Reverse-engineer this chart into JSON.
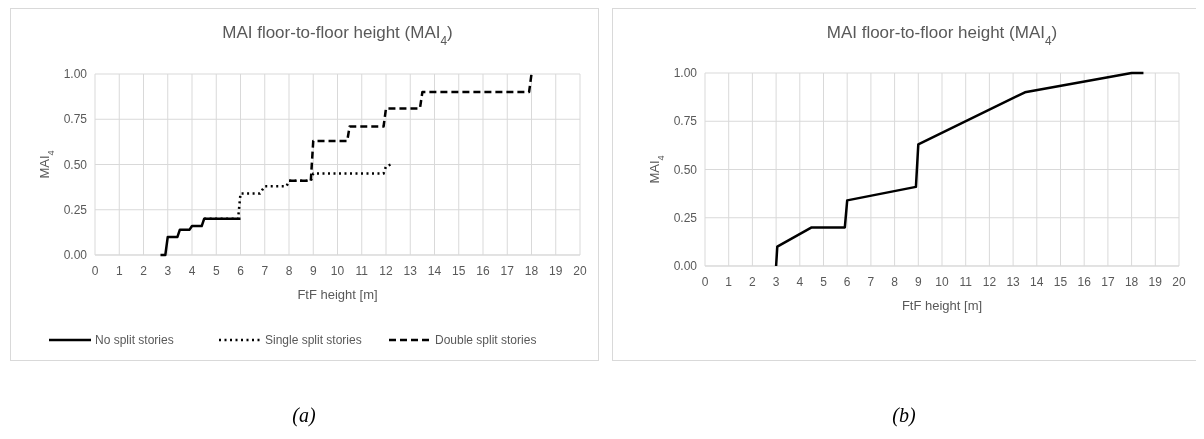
{
  "chart_data": [
    {
      "type": "line",
      "title": "MAI floor-to-floor height (MAI$_{4}$)",
      "xlabel": "FtF height [m]",
      "ylabel": "MAI$_{4}$",
      "annotations": [
        "(a)"
      ],
      "xlim": [
        0,
        20
      ],
      "xticks": [
        0,
        1,
        2,
        3,
        4,
        5,
        6,
        7,
        8,
        9,
        10,
        11,
        12,
        13,
        14,
        15,
        16,
        17,
        18,
        19,
        20
      ],
      "ylim": [
        0,
        1
      ],
      "yticks": [
        {
          "value": 0,
          "label": "0.00"
        },
        {
          "value": 0.25,
          "label": "0.25"
        },
        {
          "value": 0.5,
          "label": "0.50"
        },
        {
          "value": 0.75,
          "label": "0.75"
        },
        {
          "value": 1,
          "label": "1.00"
        }
      ],
      "grid": true,
      "legend": "bottom",
      "series": [
        {
          "name": "No split stories",
          "color": "#000000",
          "line_style": "solid",
          "x": [
            2.7,
            2.9,
            3,
            3.4,
            3.5,
            3.9,
            4,
            4.4,
            4.5,
            6
          ],
          "values": [
            0,
            0,
            0.1,
            0.1,
            0.14,
            0.14,
            0.16,
            0.16,
            0.2,
            0.2
          ]
        },
        {
          "name": "Single split stories",
          "color": "#000000",
          "line_style": "dotted",
          "x": [
            4.5,
            5.9,
            6,
            6.8,
            7,
            7.9,
            8,
            8.9,
            9,
            11.9,
            12,
            12.2
          ],
          "values": [
            0.2,
            0.2,
            0.34,
            0.34,
            0.38,
            0.38,
            0.41,
            0.41,
            0.45,
            0.45,
            0.49,
            0.5
          ]
        },
        {
          "name": "Double split stories",
          "color": "#000000",
          "line_style": "dashed",
          "x": [
            8,
            8.9,
            9,
            10.4,
            10.5,
            11.9,
            12,
            13.4,
            13.5,
            17.9,
            18
          ],
          "values": [
            0.41,
            0.41,
            0.63,
            0.63,
            0.71,
            0.71,
            0.81,
            0.81,
            0.9,
            0.9,
            1
          ]
        }
      ]
    },
    {
      "type": "line",
      "title": "MAI floor-to-floor height (MAI$_{4}$)",
      "xlabel": "FtF height [m]",
      "ylabel": "MAI$_{4}$",
      "annotations": [
        "(b)"
      ],
      "xlim": [
        0,
        20
      ],
      "xticks": [
        0,
        1,
        2,
        3,
        4,
        5,
        6,
        7,
        8,
        9,
        10,
        11,
        12,
        13,
        14,
        15,
        16,
        17,
        18,
        19,
        20
      ],
      "ylim": [
        0,
        1
      ],
      "yticks": [
        {
          "value": 0,
          "label": "0.00"
        },
        {
          "value": 0.25,
          "label": "0.25"
        },
        {
          "value": 0.5,
          "label": "0.50"
        },
        {
          "value": 0.75,
          "label": "0.75"
        },
        {
          "value": 1,
          "label": "1.00"
        }
      ],
      "grid": true,
      "series": [
        {
          "color": "#000000",
          "line_style": "solid",
          "x": [
            3,
            3.05,
            4.5,
            5.9,
            6,
            8.9,
            9,
            13.5,
            18,
            18.5
          ],
          "values": [
            0,
            0.1,
            0.2,
            0.2,
            0.34,
            0.41,
            0.63,
            0.9,
            1,
            1
          ]
        }
      ]
    }
  ]
}
